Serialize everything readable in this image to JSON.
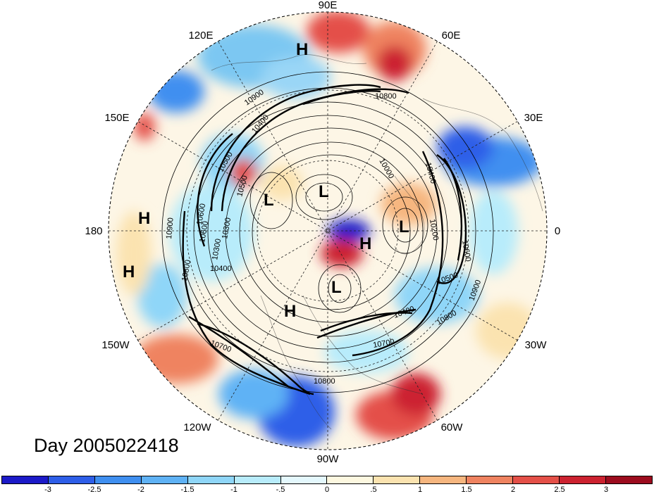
{
  "map": {
    "title": "Day 2005022418",
    "projection": "polar stereographic (northern hemisphere)",
    "longitude_labels": [
      "90E",
      "60E",
      "30E",
      "0",
      "30W",
      "60W",
      "90W",
      "120W",
      "150W",
      "180",
      "150E",
      "120E"
    ],
    "pressure_centers": [
      {
        "label": "H",
        "region": "Siberia"
      },
      {
        "label": "H",
        "region": "Pacific west of dateline"
      },
      {
        "label": "H",
        "region": "Pacific near dateline"
      },
      {
        "label": "L",
        "region": "East Siberia"
      },
      {
        "label": "L",
        "region": "Arctic"
      },
      {
        "label": "L",
        "region": "Greenland Sea"
      },
      {
        "label": "H",
        "region": "Greenland"
      },
      {
        "label": "L",
        "region": "Hudson Bay"
      },
      {
        "label": "H",
        "region": "Western North America"
      }
    ],
    "contour_labels": [
      "10900",
      "10800",
      "10400",
      "10300",
      "10600",
      "10500",
      "10000",
      "10400",
      "10200",
      "10600",
      "10500",
      "10900",
      "10800",
      "10700",
      "10400",
      "10900",
      "10800",
      "10700",
      "10800",
      "10600",
      "10400",
      "10500",
      "10300"
    ]
  },
  "colorbar": {
    "ticks": [
      "-3",
      "-2.5",
      "-2",
      "-1.5",
      "-1",
      "-.5",
      "0",
      ".5",
      "1",
      "1.5",
      "2",
      "2.5",
      "3"
    ],
    "colors": [
      "#1c1ac8",
      "#2e5ee8",
      "#3f8ff0",
      "#5fb2f5",
      "#8fd6f8",
      "#b8ecfb",
      "#e4f8fd",
      "#fdf8e0",
      "#fbe3b0",
      "#f6b67f",
      "#ef8360",
      "#e45048",
      "#cc2230",
      "#9c0c1e"
    ]
  }
}
